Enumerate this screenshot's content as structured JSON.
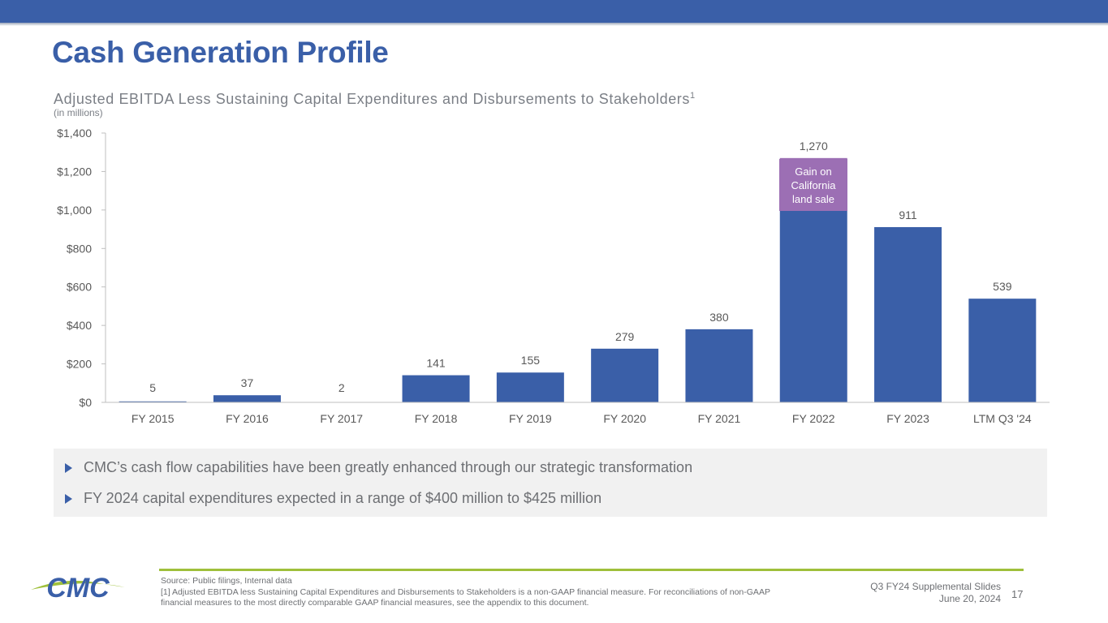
{
  "header": {
    "title": "Cash Generation Profile",
    "subtitle": "Adjusted EBITDA Less Sustaining Capital Expenditures and Disbursements to Stakeholders",
    "subtitle_sup": "1",
    "units": "(in millions)"
  },
  "chart_data": {
    "type": "bar",
    "title": "Adjusted EBITDA Less Sustaining Capital Expenditures and Disbursements to Stakeholders",
    "ylabel": "(in millions)",
    "ylim": [
      0,
      1400
    ],
    "yticks": [
      0,
      200,
      400,
      600,
      800,
      1000,
      1200,
      1400
    ],
    "ytick_labels": [
      "$0",
      "$200",
      "$400",
      "$600",
      "$800",
      "$1,000",
      "$1,200",
      "$1,400"
    ],
    "categories": [
      "FY 2015",
      "FY 2016",
      "FY 2017",
      "FY 2018",
      "FY 2019",
      "FY 2020",
      "FY 2021",
      "FY 2022",
      "FY 2023",
      "LTM Q3 '24"
    ],
    "values": [
      5,
      37,
      2,
      141,
      155,
      279,
      380,
      1270,
      911,
      539
    ],
    "value_labels": [
      "5",
      "37",
      "2",
      "141",
      "155",
      "279",
      "380",
      "1,270",
      "911",
      "539"
    ],
    "segments": [
      {
        "category": "FY 2022",
        "name": "Gain on California land sale",
        "from": 1000,
        "to": 1270
      }
    ],
    "annotation": "Gain on California land sale",
    "colors": {
      "bar": "#3a5fa8",
      "segment": "#9c6fb4",
      "axis": "#bfbfbf",
      "text": "#595959"
    }
  },
  "bullets": [
    "CMC’s cash flow capabilities have been greatly enhanced through our strategic transformation",
    "FY 2024 capital expenditures expected in a range of $400 million to $425 million"
  ],
  "footer": {
    "logo_text": "CMC",
    "source": "Source: Public filings, Internal data",
    "footnote": "[1] Adjusted EBITDA less Sustaining Capital Expenditures and Disbursements to Stakeholders is a non-GAAP financial measure. For reconciliations of non-GAAP financial measures to the most directly comparable GAAP financial measures, see the appendix to this document.",
    "deck_title": "Q3 FY24 Supplemental Slides",
    "date": "June 20, 2024",
    "page": "17"
  }
}
